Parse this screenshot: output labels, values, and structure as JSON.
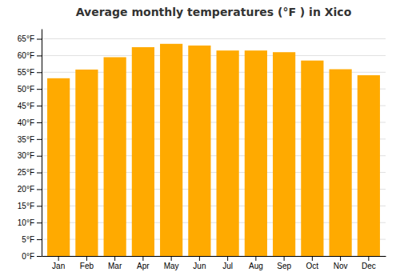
{
  "chart_data": {
    "type": "bar",
    "title": "Average monthly temperatures (°F ) in Xico",
    "categories": [
      "Jan",
      "Feb",
      "Mar",
      "Apr",
      "May",
      "Jun",
      "Jul",
      "Aug",
      "Sep",
      "Oct",
      "Nov",
      "Dec"
    ],
    "values": [
      53.2,
      55.8,
      59.5,
      62.5,
      63.5,
      63.0,
      61.5,
      61.5,
      61.0,
      58.5,
      55.9,
      54.1
    ],
    "color": "#FFAA00",
    "ylim": [
      0,
      68
    ],
    "yticks": [
      {
        "value": 0,
        "label": "0°F"
      },
      {
        "value": 5,
        "label": "5°F"
      },
      {
        "value": 10,
        "label": "10°F"
      },
      {
        "value": 15,
        "label": "15°F"
      },
      {
        "value": 20,
        "label": "20°F"
      },
      {
        "value": 25,
        "label": "25°F"
      },
      {
        "value": 30,
        "label": "30°F"
      },
      {
        "value": 35,
        "label": "35°F"
      },
      {
        "value": 40,
        "label": "40°F"
      },
      {
        "value": 45,
        "label": "45°F"
      },
      {
        "value": 50,
        "label": "50°F"
      },
      {
        "value": 55,
        "label": "55°F"
      },
      {
        "value": 60,
        "label": "60°F"
      },
      {
        "value": 65,
        "label": "65°F"
      }
    ],
    "grid": true
  }
}
